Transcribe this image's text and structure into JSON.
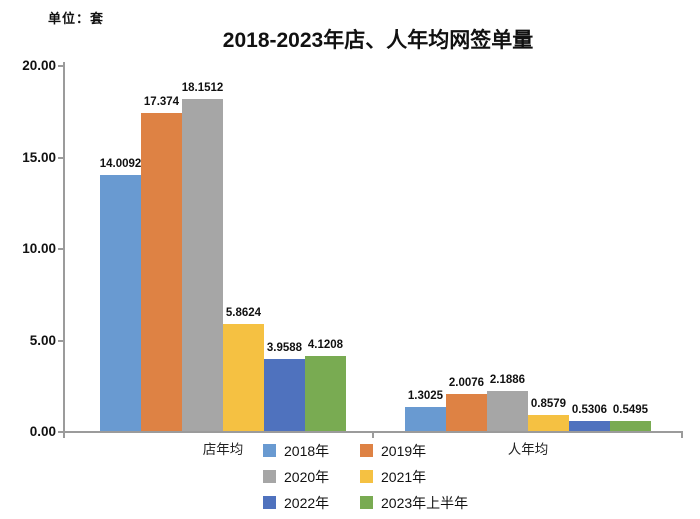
{
  "unit_label": "单位：套",
  "title": "2018-2023年店、人年均网签单量",
  "chart_data": {
    "type": "bar",
    "title": "2018-2023年店、人年均网签单量",
    "unit": "单位：套",
    "categories": [
      "店年均",
      "人年均"
    ],
    "series": [
      {
        "name": "2018年",
        "color": "#699AD1",
        "values": [
          14.0092,
          1.3025
        ],
        "value_labels": [
          "14.0092",
          "1.3025"
        ]
      },
      {
        "name": "2019年",
        "color": "#DE8244",
        "values": [
          17.374,
          2.0076
        ],
        "value_labels": [
          "17.374",
          "2.0076"
        ]
      },
      {
        "name": "2020年",
        "color": "#A6A6A6",
        "values": [
          18.1512,
          2.1886
        ],
        "value_labels": [
          "18.1512",
          "2.1886"
        ]
      },
      {
        "name": "2021年",
        "color": "#F5C142",
        "values": [
          5.8624,
          0.8579
        ],
        "value_labels": [
          "5.8624",
          "0.8579"
        ]
      },
      {
        "name": "2022年",
        "color": "#4F72BE",
        "values": [
          3.9588,
          0.5306
        ],
        "value_labels": [
          "3.9588",
          "0.5306"
        ]
      },
      {
        "name": "2023年上半年",
        "color": "#79AB52",
        "values": [
          4.1208,
          0.5495
        ],
        "value_labels": [
          "4.1208",
          "0.5495"
        ]
      }
    ],
    "ylim": [
      0,
      20
    ],
    "yticks": [
      "0.00",
      "5.00",
      "10.00",
      "15.00",
      "20.00"
    ],
    "grid": false,
    "legend_position": "bottom"
  }
}
